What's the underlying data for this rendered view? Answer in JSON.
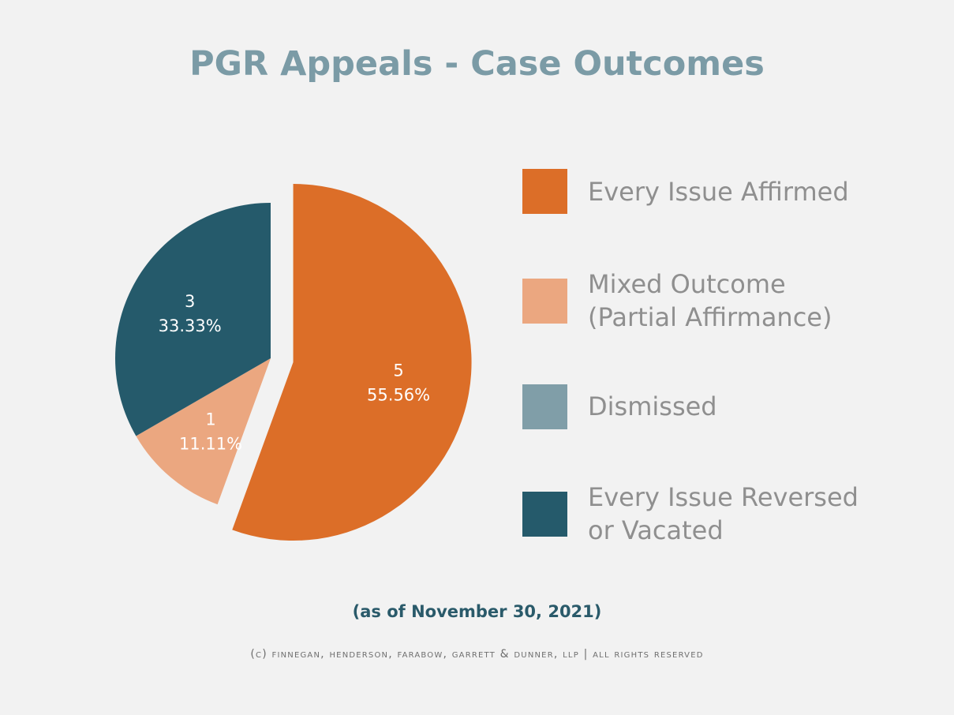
{
  "chart_data": {
    "type": "pie",
    "title": "PGR Appeals - Case Outcomes",
    "subtitle": "(as of November 30, 2021)",
    "footer": "(c) finnegan, henderson, farabow, garrett & dunner, llp | all rights reserved",
    "legend_position": "right",
    "series": [
      {
        "name": "Every Issue Affirmed",
        "legend_lines": [
          "Every Issue Affirmed"
        ],
        "value": 5,
        "count_label": "5",
        "percent_label": "55.56%",
        "color": "#dc6e28"
      },
      {
        "name": "Mixed Outcome (Partial Affirmance)",
        "legend_lines": [
          "Mixed Outcome",
          "(Partial Affirmance)"
        ],
        "value": 1,
        "count_label": "1",
        "percent_label": "11.11%",
        "color": "#eba780"
      },
      {
        "name": "Dismissed",
        "legend_lines": [
          "Dismissed"
        ],
        "value": 0,
        "count_label": "",
        "percent_label": "",
        "color": "#809ea8"
      },
      {
        "name": "Every Issue Reversed or Vacated",
        "legend_lines": [
          "Every Issue Reversed",
          "or Vacated"
        ],
        "value": 3,
        "count_label": "3",
        "percent_label": "33.33%",
        "color": "#255a6b"
      }
    ]
  }
}
